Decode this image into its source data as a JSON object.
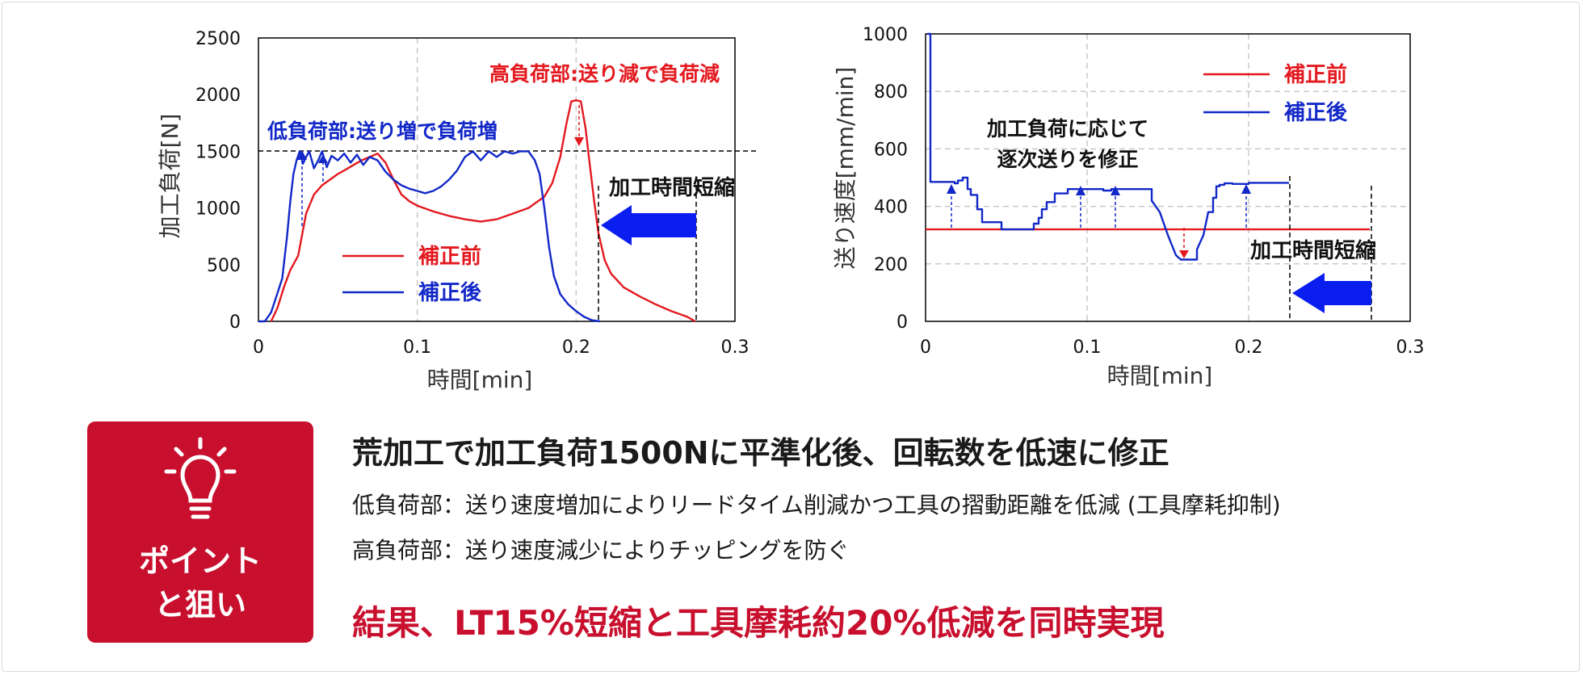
{
  "chart_data": [
    {
      "type": "line",
      "title": "",
      "xlabel": "時間[min]",
      "ylabel": "加工負荷[N]",
      "xlim": [
        0,
        0.3
      ],
      "ylim": [
        0,
        2500
      ],
      "xticks": [
        0,
        0.1,
        0.2,
        0.3
      ],
      "xtick_labels": [
        "0",
        "0.1",
        "0.2",
        "0.3"
      ],
      "yticks": [
        0,
        500,
        1000,
        1500,
        2000,
        2500
      ],
      "ytick_labels": [
        "0",
        "500",
        "1000",
        "1500",
        "2000",
        "2500"
      ],
      "grid": "vertical dashed",
      "legend_position": "lower-left",
      "reference_line": 1500,
      "series": [
        {
          "name": "補正前",
          "color": "#e3191f",
          "x": [
            0.008,
            0.012,
            0.016,
            0.02,
            0.025,
            0.03,
            0.035,
            0.04,
            0.045,
            0.05,
            0.055,
            0.06,
            0.065,
            0.07,
            0.075,
            0.08,
            0.085,
            0.09,
            0.095,
            0.1,
            0.11,
            0.12,
            0.13,
            0.14,
            0.15,
            0.16,
            0.17,
            0.18,
            0.185,
            0.19,
            0.194,
            0.197,
            0.2,
            0.203,
            0.206,
            0.208,
            0.211,
            0.214,
            0.218,
            0.222,
            0.23,
            0.24,
            0.25,
            0.26,
            0.27,
            0.275
          ],
          "y": [
            0,
            120,
            300,
            450,
            580,
            950,
            1120,
            1200,
            1250,
            1300,
            1340,
            1380,
            1420,
            1450,
            1480,
            1400,
            1250,
            1120,
            1060,
            1020,
            970,
            930,
            900,
            880,
            900,
            950,
            1000,
            1100,
            1220,
            1450,
            1750,
            1940,
            1950,
            1940,
            1700,
            1450,
            1100,
            780,
            540,
            420,
            300,
            220,
            150,
            90,
            40,
            0
          ]
        },
        {
          "name": "補正後",
          "color": "#1228c8",
          "x": [
            0.0,
            0.004,
            0.008,
            0.012,
            0.015,
            0.018,
            0.02,
            0.022,
            0.024,
            0.026,
            0.028,
            0.03,
            0.032,
            0.035,
            0.038,
            0.04,
            0.043,
            0.046,
            0.05,
            0.054,
            0.058,
            0.062,
            0.066,
            0.07,
            0.075,
            0.08,
            0.085,
            0.09,
            0.095,
            0.1,
            0.105,
            0.11,
            0.115,
            0.12,
            0.125,
            0.13,
            0.135,
            0.14,
            0.145,
            0.15,
            0.155,
            0.16,
            0.165,
            0.17,
            0.174,
            0.177,
            0.18,
            0.183,
            0.186,
            0.19,
            0.195,
            0.2,
            0.205,
            0.21,
            0.215
          ],
          "y": [
            0,
            0,
            80,
            250,
            380,
            750,
            1050,
            1300,
            1420,
            1500,
            1390,
            1450,
            1500,
            1350,
            1430,
            1500,
            1360,
            1460,
            1420,
            1480,
            1400,
            1470,
            1380,
            1450,
            1420,
            1320,
            1250,
            1200,
            1170,
            1150,
            1130,
            1150,
            1190,
            1250,
            1330,
            1450,
            1500,
            1420,
            1500,
            1450,
            1500,
            1480,
            1500,
            1500,
            1420,
            1300,
            1000,
            650,
            400,
            240,
            150,
            90,
            40,
            10,
            0
          ]
        }
      ],
      "annotations": {
        "high_load": "高負荷部:送り減で負荷減",
        "low_load": "低負荷部:送り増で負荷増",
        "time_shortening": "加工時間短縮"
      }
    },
    {
      "type": "line",
      "title": "",
      "xlabel": "時間[min]",
      "ylabel": "送り速度[mm/min]",
      "xlim": [
        0,
        0.3
      ],
      "ylim": [
        0,
        1000
      ],
      "xticks": [
        0,
        0.1,
        0.2,
        0.3
      ],
      "xtick_labels": [
        "0",
        "0.1",
        "0.2",
        "0.3"
      ],
      "yticks": [
        0,
        200,
        400,
        600,
        800,
        1000
      ],
      "ytick_labels": [
        "0",
        "200",
        "400",
        "600",
        "800",
        "1000"
      ],
      "grid": "both dashed",
      "legend_position": "top-right",
      "series": [
        {
          "name": "補正前",
          "color": "#e3191f",
          "x": [
            0,
            0.275
          ],
          "y": [
            320,
            320
          ]
        },
        {
          "name": "補正後",
          "color": "#1228c8",
          "x": [
            0.001,
            0.001,
            0.003,
            0.003,
            0.018,
            0.018,
            0.02,
            0.02,
            0.023,
            0.023,
            0.026,
            0.026,
            0.028,
            0.028,
            0.032,
            0.032,
            0.035,
            0.035,
            0.047,
            0.047,
            0.067,
            0.067,
            0.07,
            0.07,
            0.072,
            0.072,
            0.075,
            0.075,
            0.08,
            0.08,
            0.088,
            0.088,
            0.11,
            0.11,
            0.115,
            0.115,
            0.14,
            0.14,
            0.145,
            0.15,
            0.155,
            0.158,
            0.168,
            0.168,
            0.172,
            0.175,
            0.178,
            0.178,
            0.18,
            0.18,
            0.182,
            0.182,
            0.185,
            0.185,
            0.19,
            0.19,
            0.2,
            0.2,
            0.225
          ],
          "y": [
            1000,
            1000,
            1000,
            485,
            485,
            480,
            480,
            490,
            490,
            500,
            500,
            460,
            460,
            440,
            440,
            390,
            390,
            345,
            345,
            320,
            320,
            340,
            340,
            360,
            360,
            390,
            390,
            415,
            415,
            445,
            445,
            460,
            460,
            455,
            455,
            460,
            460,
            420,
            380,
            300,
            230,
            215,
            215,
            250,
            300,
            380,
            380,
            430,
            430,
            470,
            470,
            475,
            475,
            480,
            480,
            478,
            478,
            482,
            482
          ]
        }
      ],
      "annotations": {
        "note_line1": "加工負荷に応じて",
        "note_line2": "逐次送りを修正",
        "time_shortening": "加工時間短縮"
      }
    }
  ],
  "point_box": {
    "line1": "ポイント",
    "line2": "と狙い",
    "bg_color": "#c8102e",
    "icon": "lightbulb-icon"
  },
  "text": {
    "headline": "荒加工で加工負荷1500Nに平準化後、回転数を低速に修正",
    "low_load_line": "低負荷部：送り速度増加によりリードタイム削減かつ工具の摺動距離を低減 (工具摩耗抑制)",
    "high_load_line": "高負荷部：送り速度減少によりチッピングを防ぐ",
    "result": "結果、LT15%短縮と工具摩耗約20%低減を同時実現"
  },
  "colors": {
    "accent_red": "#c8102e",
    "series_red": "#e3191f",
    "series_blue": "#1228c8",
    "arrow_blue": "#0a1ef0"
  }
}
